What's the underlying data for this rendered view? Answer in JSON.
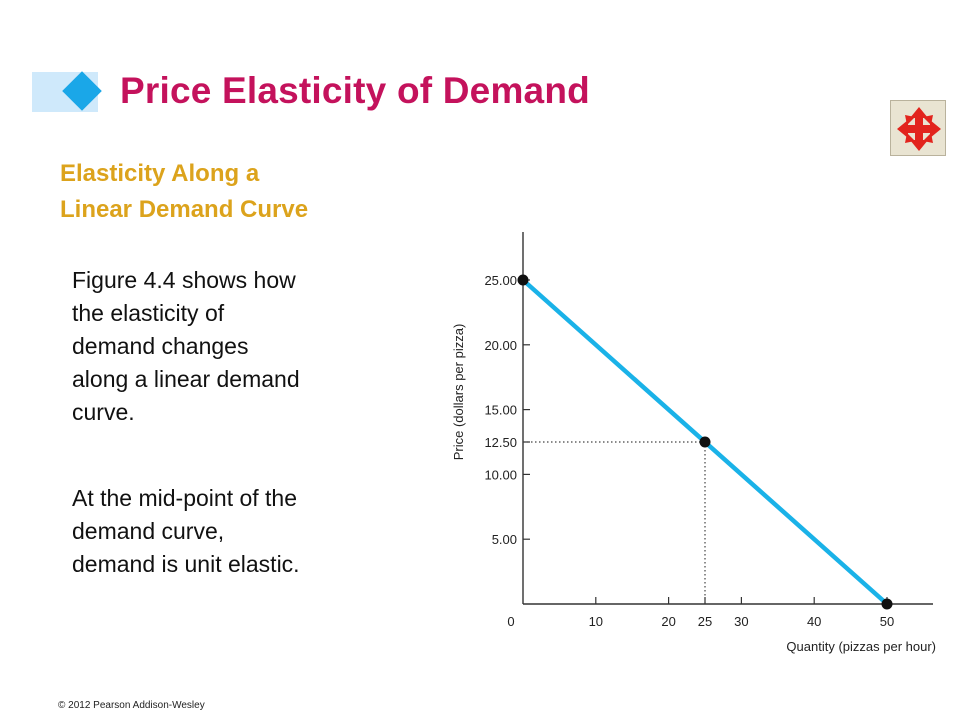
{
  "slide": {
    "title": "Price Elasticity of Demand",
    "subheading_lines": [
      "Elasticity Along a",
      "Linear Demand Curve"
    ],
    "paragraph1_lines": [
      "Figure 4.4 shows how",
      "the elasticity of",
      "demand changes",
      "along a linear demand",
      "curve."
    ],
    "paragraph2_lines": [
      "At the mid-point of the",
      "demand curve,",
      "demand is unit elastic."
    ],
    "copyright": "© 2012 Pearson Addison-Wesley",
    "nav_icon": "four-way-arrows-icon",
    "colors": {
      "title": "#c4125c",
      "subheading": "#dca31c",
      "accent": "#1aa7e8",
      "demand_line": "#1ab2e8",
      "nav_icon": "#e2241d"
    }
  },
  "chart_data": {
    "type": "line",
    "x_label": "Quantity (pizzas per hour)",
    "y_label": "Price (dollars per pizza)",
    "x_ticks": [
      {
        "value": 0,
        "label": "0"
      },
      {
        "value": 10,
        "label": "10"
      },
      {
        "value": 20,
        "label": "20"
      },
      {
        "value": 25,
        "label": "25"
      },
      {
        "value": 30,
        "label": "30"
      },
      {
        "value": 40,
        "label": "40"
      },
      {
        "value": 50,
        "label": "50"
      }
    ],
    "y_ticks": [
      {
        "value": 5,
        "label": "5.00"
      },
      {
        "value": 10,
        "label": "10.00"
      },
      {
        "value": 12.5,
        "label": "12.50"
      },
      {
        "value": 15,
        "label": "15.00"
      },
      {
        "value": 20,
        "label": "20.00"
      },
      {
        "value": 25,
        "label": "25.00"
      }
    ],
    "xlim": [
      0,
      56
    ],
    "ylim": [
      0,
      28
    ],
    "series": [
      {
        "x": [
          0,
          50
        ],
        "y": [
          25,
          0
        ]
      }
    ],
    "points": [
      {
        "x": 0,
        "y": 25
      },
      {
        "x": 25,
        "y": 12.5
      },
      {
        "x": 50,
        "y": 0
      }
    ],
    "guides": [
      {
        "x": 25,
        "y": 12.5
      }
    ],
    "grid": false
  }
}
